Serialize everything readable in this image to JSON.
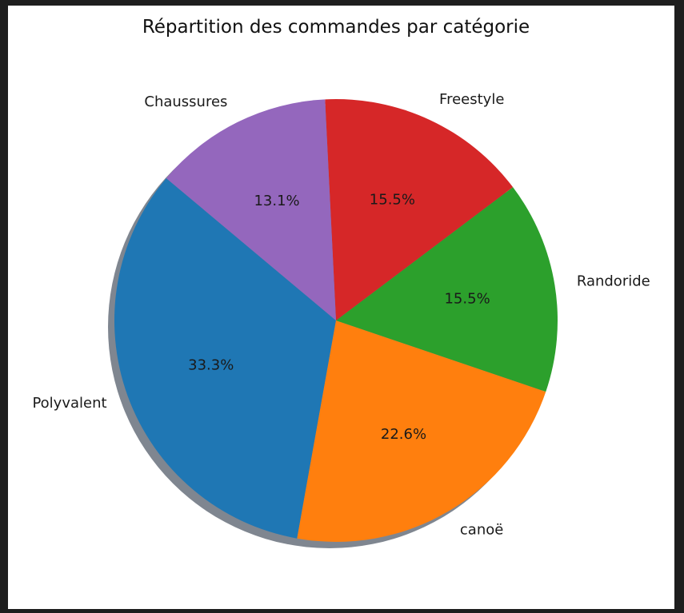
{
  "chart_data": {
    "type": "pie",
    "title": "Répartition des commandes par catégorie",
    "shadow": true,
    "start_angle_deg": 140,
    "direction": "counterclockwise",
    "slices": [
      {
        "label": "Polyvalent",
        "value": 33.3,
        "pct_label": "33.3%",
        "color": "#1f77b4"
      },
      {
        "label": "canoë",
        "value": 22.6,
        "pct_label": "22.6%",
        "color": "#ff7f0e"
      },
      {
        "label": "Randoride",
        "value": 15.5,
        "pct_label": "15.5%",
        "color": "#2ca02c"
      },
      {
        "label": "Freestyle",
        "value": 15.5,
        "pct_label": "15.5%",
        "color": "#d62728"
      },
      {
        "label": "Chaussures",
        "value": 13.1,
        "pct_label": "13.1%",
        "color": "#9467bd"
      }
    ]
  },
  "colors": {
    "background_outer": "#1e1e1e",
    "figure_background": "#ffffff",
    "shadow": "#7f8690"
  }
}
